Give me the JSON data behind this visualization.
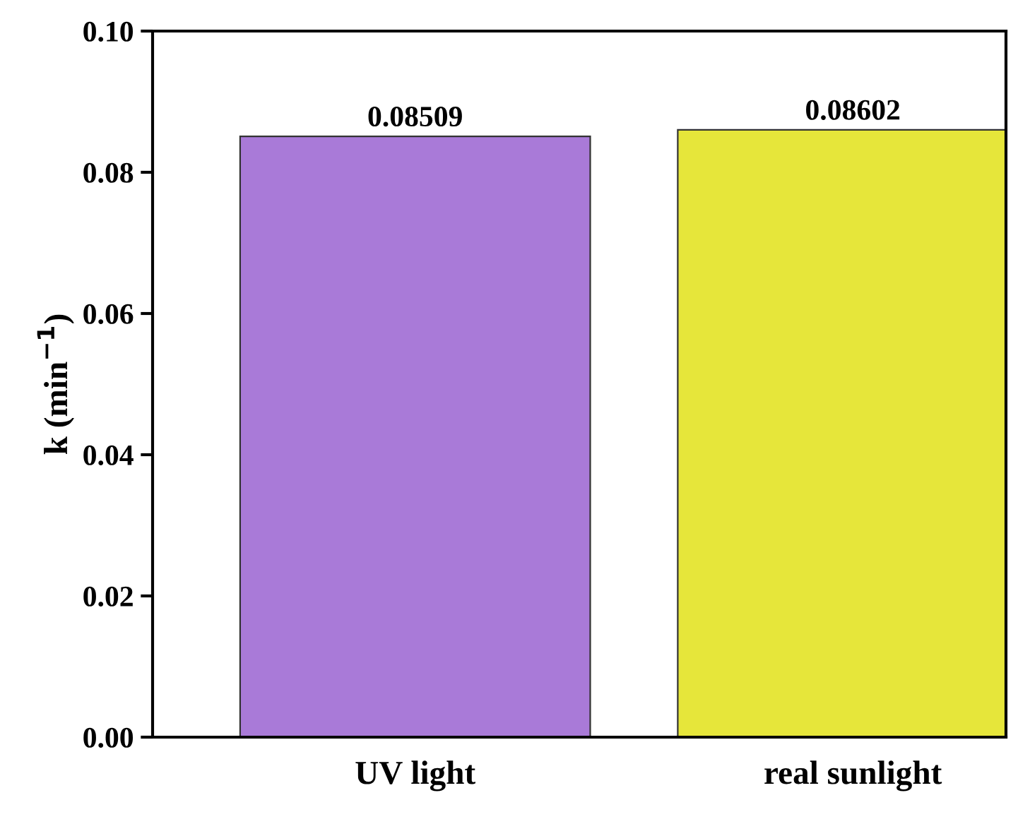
{
  "chart_data": {
    "type": "bar",
    "ylabel": "k (min$^{−1}$)",
    "categories": [
      "UV light",
      "real sunlight"
    ],
    "values": [
      0.08509,
      0.08602
    ],
    "colors": [
      "#a97ad8",
      "#e6e63a"
    ],
    "ylim": [
      0,
      0.1
    ],
    "yticks": [
      {
        "value": 0,
        "label": "0.00"
      },
      {
        "value": 0.02,
        "label": "0.02"
      },
      {
        "value": 0.04,
        "label": "0.04"
      },
      {
        "value": 0.06,
        "label": "0.06"
      },
      {
        "value": 0.08,
        "label": "0.08"
      },
      {
        "value": 0.1,
        "label": "0.10"
      }
    ],
    "data_labels": true,
    "grid": false,
    "legend": false
  }
}
